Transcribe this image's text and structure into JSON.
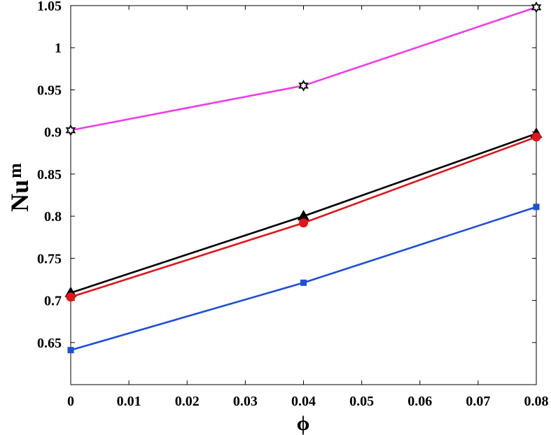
{
  "chart_data": {
    "type": "line",
    "xlabel": "ϕ",
    "ylabel": "Nu",
    "ylabel_subscript": "m",
    "xlim": [
      0,
      0.08
    ],
    "ylim": [
      0.6,
      1.05
    ],
    "x_ticks": [
      0,
      0.01,
      0.02,
      0.03,
      0.04,
      0.05,
      0.06,
      0.07,
      0.08
    ],
    "x_tick_labels": [
      "0",
      "0.01",
      "0.02",
      "0.03",
      "0.04",
      "0.05",
      "0.06",
      "0.07",
      "0.08"
    ],
    "y_ticks": [
      0.65,
      0.7,
      0.75,
      0.8,
      0.85,
      0.9,
      0.95,
      1.0,
      1.05
    ],
    "y_tick_labels": [
      "0.65",
      "0.7",
      "0.75",
      "0.8",
      "0.85",
      "0.9",
      "0.95",
      "1",
      "1.05"
    ],
    "grid": false,
    "x": [
      0,
      0.04,
      0.08
    ],
    "series": [
      {
        "values": [
          0.902,
          0.955,
          1.048
        ],
        "color": "#ee3de8",
        "marker": "hexagram"
      },
      {
        "values": [
          0.709,
          0.8,
          0.898
        ],
        "color": "#000000",
        "marker": "triangle"
      },
      {
        "values": [
          0.704,
          0.792,
          0.894
        ],
        "color": "#e1151a",
        "marker": "circle"
      },
      {
        "values": [
          0.641,
          0.721,
          0.811
        ],
        "color": "#1f4fd6",
        "marker": "square"
      }
    ]
  }
}
